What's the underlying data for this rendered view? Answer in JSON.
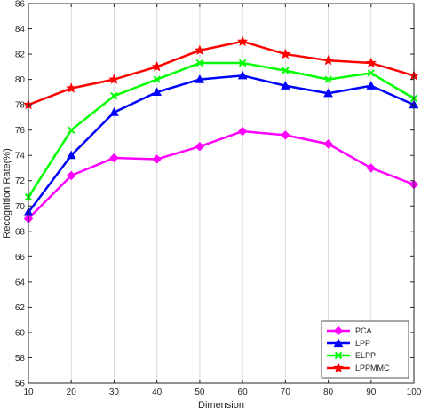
{
  "chart_data": {
    "type": "line",
    "xlabel": "Dimension",
    "ylabel": "Recognition Rate(%)",
    "xlim": [
      10,
      100
    ],
    "ylim": [
      56,
      86
    ],
    "xticks": [
      10,
      20,
      30,
      40,
      50,
      60,
      70,
      80,
      90,
      100
    ],
    "yticks": [
      56,
      58,
      60,
      62,
      64,
      66,
      68,
      70,
      72,
      74,
      76,
      78,
      80,
      82,
      84,
      86
    ],
    "grid": "vertical",
    "legend_position": "bottom-right",
    "x": [
      10,
      20,
      30,
      40,
      50,
      60,
      70,
      80,
      90,
      100
    ],
    "series": [
      {
        "name": "PCA",
        "color": "#ff00ff",
        "marker": "diamond",
        "values": [
          69.0,
          72.4,
          73.8,
          73.7,
          74.7,
          75.9,
          75.6,
          74.9,
          73.0,
          71.7
        ]
      },
      {
        "name": "LPP",
        "color": "#0000ff",
        "marker": "triangle-up",
        "values": [
          69.5,
          74.0,
          77.4,
          79.0,
          80.0,
          80.3,
          79.5,
          78.9,
          79.5,
          78.0
        ]
      },
      {
        "name": "ELPP",
        "color": "#00ff00",
        "marker": "x",
        "values": [
          70.7,
          76.0,
          78.7,
          80.0,
          81.3,
          81.3,
          80.7,
          80.0,
          80.5,
          78.5
        ]
      },
      {
        "name": "LPPMMC",
        "color": "#ff0000",
        "marker": "star",
        "values": [
          78.0,
          79.3,
          80.0,
          81.0,
          82.3,
          83.0,
          82.0,
          81.5,
          81.3,
          80.3
        ]
      }
    ]
  }
}
